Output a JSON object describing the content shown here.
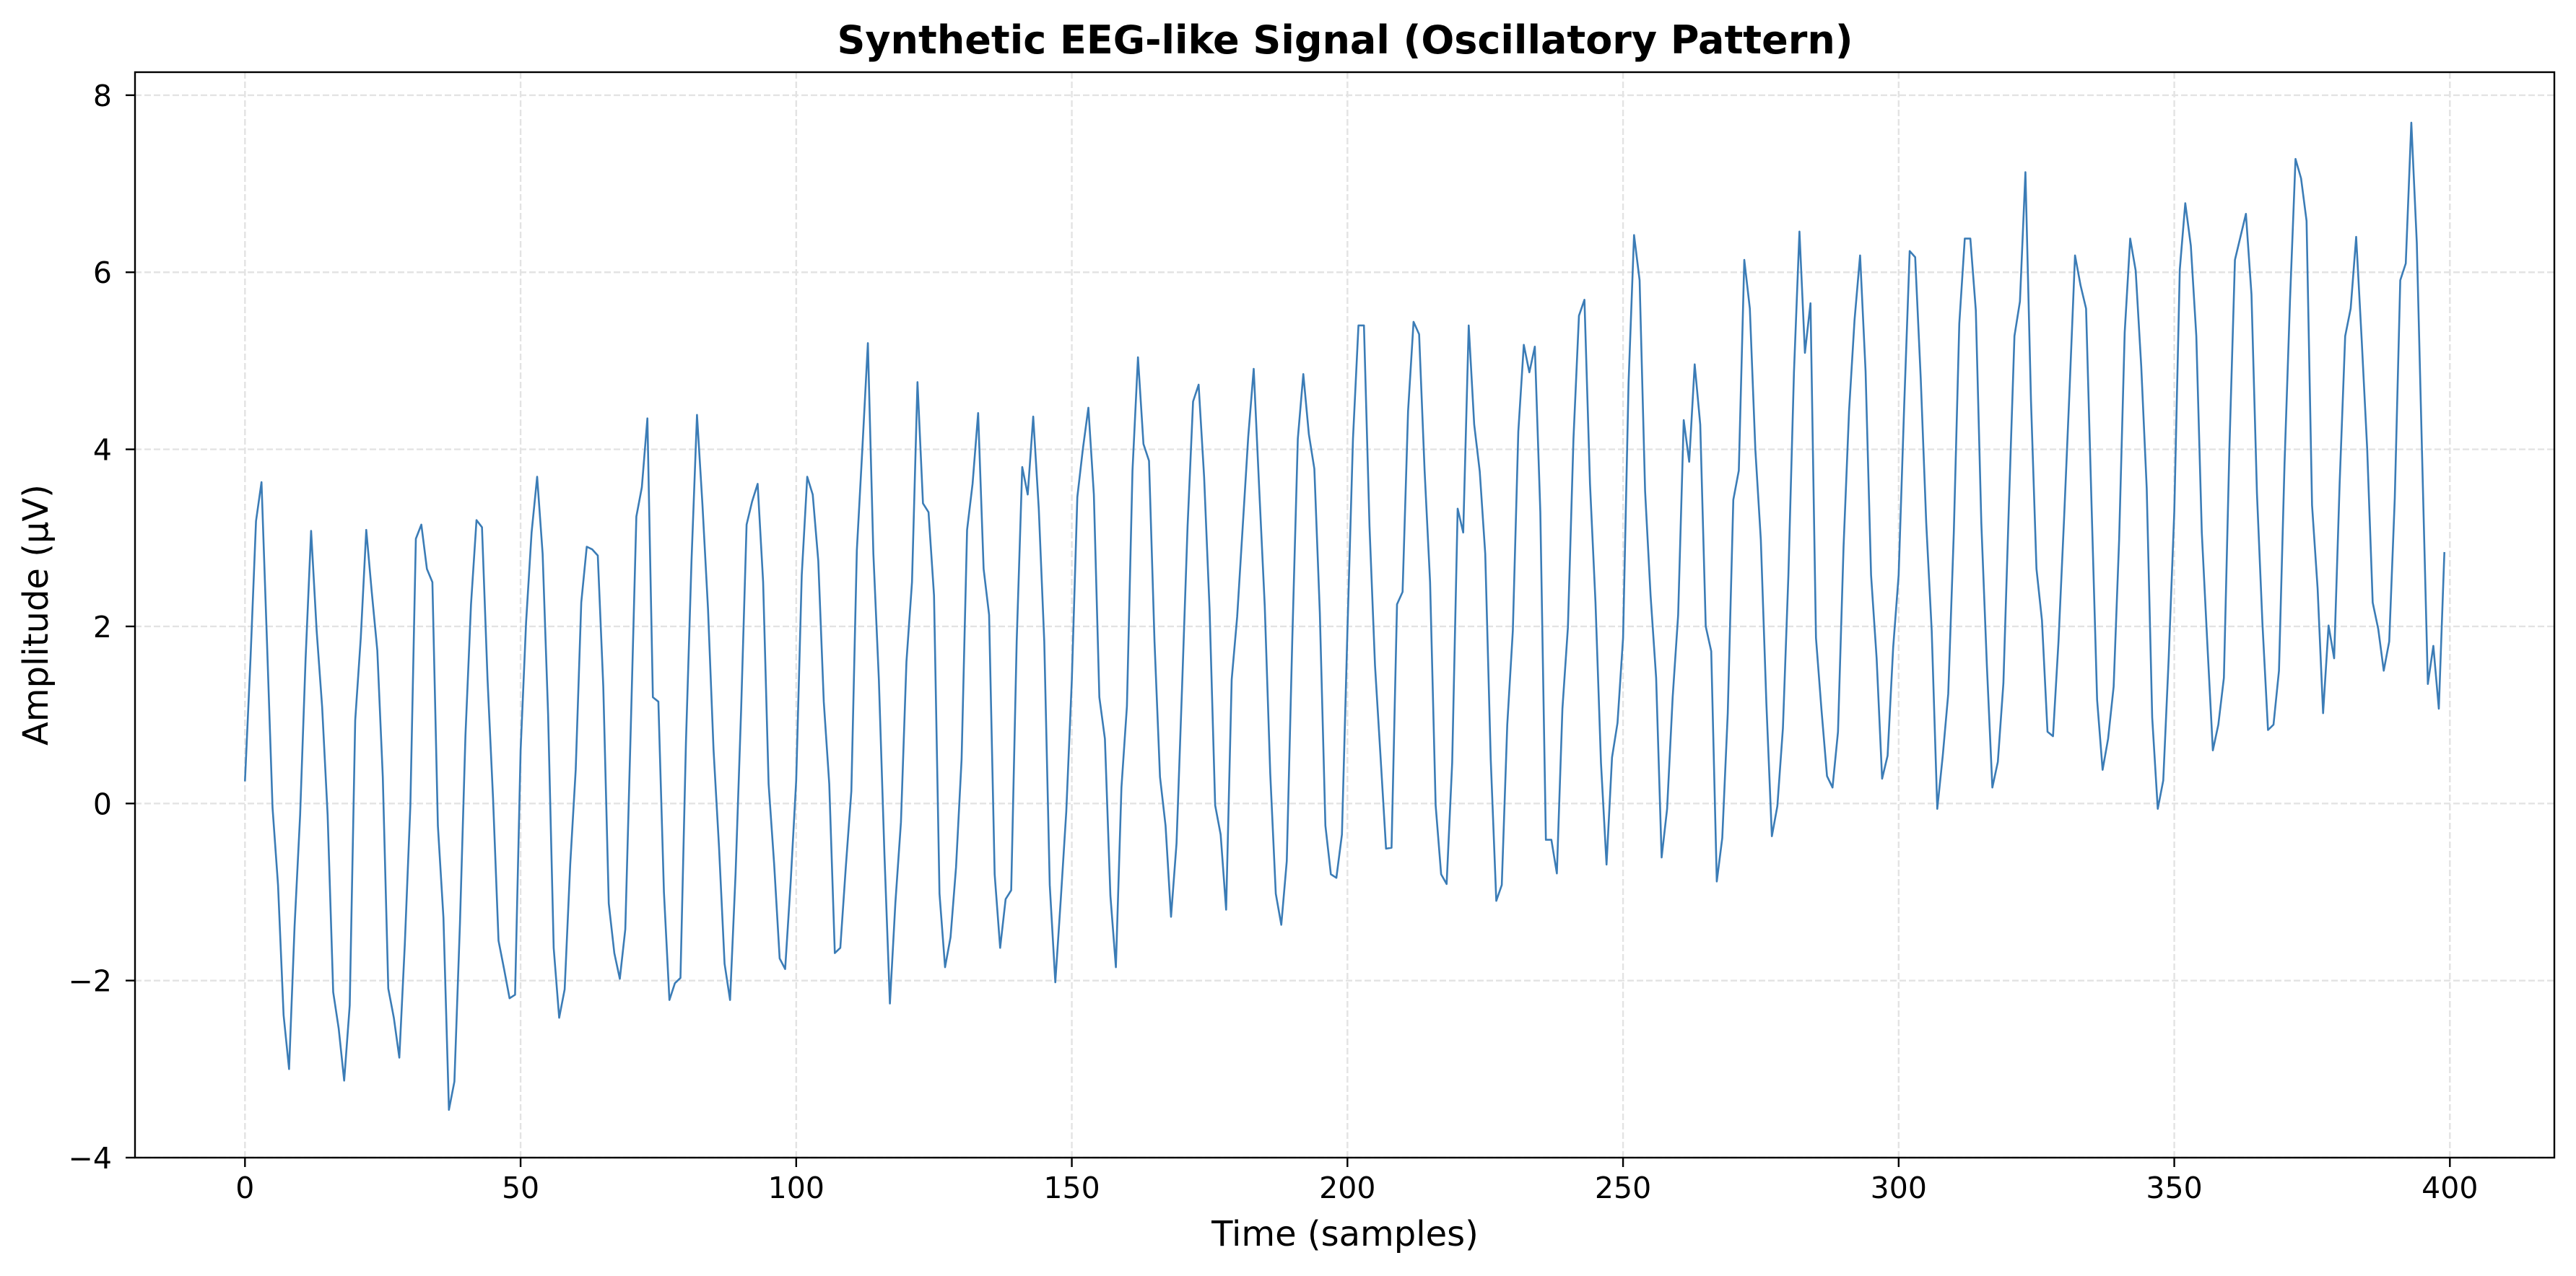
{
  "chart_data": {
    "type": "line",
    "title": "Synthetic EEG-like Signal (Oscillatory Pattern)",
    "xlabel": "Time (samples)",
    "ylabel": "Amplitude (µV)",
    "xlim": [
      -19.95,
      418.95
    ],
    "ylim": [
      -4.0,
      8.26
    ],
    "xticks": [
      0,
      50,
      100,
      150,
      200,
      250,
      300,
      350,
      400
    ],
    "xtick_labels": [
      "0",
      "50",
      "100",
      "150",
      "200",
      "250",
      "300",
      "350",
      "400"
    ],
    "yticks": [
      -4,
      -2,
      0,
      2,
      4,
      6,
      8
    ],
    "ytick_labels": [
      "−4",
      "−2",
      "0",
      "2",
      "4",
      "6",
      "8"
    ],
    "grid": true,
    "legend": "none",
    "line_color": "#3b7cb6",
    "grid_color": "#e3e3e3",
    "series": [
      {
        "x_start": 0,
        "x_step": 1,
        "values": [
          0.25,
          1.64,
          3.19,
          3.63,
          1.8,
          -0.05,
          -0.92,
          -2.39,
          -3.0,
          -1.39,
          -0.13,
          1.64,
          3.08,
          1.95,
          1.09,
          -0.13,
          -2.13,
          -2.54,
          -3.13,
          -2.28,
          0.94,
          1.87,
          3.09,
          2.39,
          1.73,
          0.3,
          -2.09,
          -2.42,
          -2.87,
          -1.59,
          -0.02,
          2.99,
          3.15,
          2.65,
          2.5,
          -0.25,
          -1.29,
          -3.46,
          -3.14,
          -1.35,
          0.77,
          2.25,
          3.2,
          3.12,
          1.4,
          0.06,
          -1.55,
          -1.87,
          -2.2,
          -2.16,
          0.6,
          2.05,
          3.06,
          3.69,
          2.82,
          1.0,
          -1.63,
          -2.42,
          -2.1,
          -0.69,
          0.38,
          2.27,
          2.9,
          2.87,
          2.8,
          1.32,
          -1.13,
          -1.69,
          -1.98,
          -1.42,
          0.89,
          3.24,
          3.57,
          4.35,
          1.2,
          1.15,
          -1.0,
          -2.22,
          -2.03,
          -1.97,
          0.69,
          2.74,
          4.39,
          3.37,
          2.19,
          0.61,
          -0.49,
          -1.81,
          -2.22,
          -0.8,
          1.05,
          3.15,
          3.41,
          3.61,
          2.5,
          0.22,
          -0.69,
          -1.75,
          -1.87,
          -0.88,
          0.26,
          2.58,
          3.69,
          3.49,
          2.74,
          1.15,
          0.22,
          -1.69,
          -1.63,
          -0.72,
          0.14,
          2.86,
          4.0,
          5.2,
          2.82,
          1.4,
          -0.57,
          -2.26,
          -1.12,
          -0.21,
          1.6,
          2.5,
          4.76,
          3.39,
          3.29,
          2.35,
          -1.02,
          -1.85,
          -1.51,
          -0.72,
          0.5,
          3.09,
          3.61,
          4.41,
          2.65,
          2.13,
          -0.8,
          -1.63,
          -1.08,
          -0.98,
          1.83,
          3.8,
          3.49,
          4.37,
          3.33,
          1.83,
          -0.92,
          -2.02,
          -1.08,
          -0.09,
          1.4,
          3.46,
          4.0,
          4.47,
          3.49,
          1.2,
          0.73,
          -1.04,
          -1.85,
          0.18,
          1.1,
          3.76,
          5.04,
          4.06,
          3.87,
          1.83,
          0.3,
          -0.25,
          -1.28,
          -0.45,
          1.32,
          3.13,
          4.54,
          4.73,
          3.69,
          2.19,
          -0.02,
          -0.35,
          -1.2,
          1.4,
          2.11,
          3.13,
          4.14,
          4.91,
          3.54,
          2.23,
          0.34,
          -1.02,
          -1.37,
          -0.65,
          1.87,
          4.12,
          4.85,
          4.17,
          3.78,
          2.15,
          -0.25,
          -0.8,
          -0.84,
          -0.35,
          1.95,
          4.12,
          5.4,
          5.4,
          3.13,
          1.56,
          0.54,
          -0.51,
          -0.5,
          2.25,
          2.39,
          4.43,
          5.44,
          5.3,
          3.76,
          2.5,
          -0.02,
          -0.8,
          -0.91,
          0.46,
          3.33,
          3.06,
          5.4,
          4.28,
          3.75,
          2.82,
          0.5,
          -1.1,
          -0.92,
          0.89,
          1.95,
          4.2,
          5.18,
          4.87,
          5.16,
          3.29,
          -0.41,
          -0.41,
          -0.79,
          1.07,
          1.99,
          4.12,
          5.51,
          5.69,
          3.61,
          2.27,
          0.46,
          -0.69,
          0.52,
          0.91,
          1.87,
          4.75,
          6.42,
          5.91,
          3.53,
          2.35,
          1.42,
          -0.61,
          -0.06,
          1.2,
          2.13,
          4.33,
          3.86,
          4.96,
          4.28,
          2.0,
          1.72,
          -0.88,
          -0.39,
          1.02,
          3.43,
          3.76,
          6.14,
          5.59,
          4.0,
          2.98,
          1.13,
          -0.37,
          -0.03,
          0.85,
          2.58,
          4.87,
          6.46,
          5.09,
          5.65,
          1.87,
          1.06,
          0.31,
          0.18,
          0.81,
          2.9,
          4.43,
          5.46,
          6.19,
          4.88,
          2.58,
          1.64,
          0.28,
          0.54,
          1.76,
          2.58,
          4.5,
          6.24,
          6.17,
          4.8,
          3.17,
          1.95,
          -0.06,
          0.54,
          1.24,
          3.06,
          5.42,
          6.38,
          6.38,
          5.57,
          3.17,
          1.56,
          0.18,
          0.47,
          1.36,
          3.37,
          5.28,
          5.67,
          7.13,
          4.55,
          2.65,
          2.07,
          0.81,
          0.76,
          1.83,
          3.21,
          4.67,
          6.19,
          5.85,
          5.59,
          3.37,
          1.17,
          0.38,
          0.73,
          1.32,
          2.98,
          5.32,
          6.38,
          6.02,
          4.94,
          3.56,
          0.97,
          -0.06,
          0.26,
          1.65,
          3.3,
          6.03,
          6.78,
          6.3,
          5.28,
          3.06,
          1.8,
          0.6,
          0.89,
          1.42,
          4.0,
          6.14,
          6.4,
          6.66,
          5.75,
          3.5,
          2.03,
          0.83,
          0.89,
          1.5,
          3.84,
          5.69,
          7.28,
          7.06,
          6.58,
          3.37,
          2.43,
          1.02,
          2.01,
          1.64,
          3.61,
          5.28,
          5.59,
          6.4,
          5.23,
          4.0,
          2.27,
          1.97,
          1.5,
          1.83,
          3.45,
          5.91,
          6.1,
          7.69,
          6.33,
          3.84,
          1.35,
          1.78,
          1.07,
          2.84
        ]
      }
    ]
  }
}
